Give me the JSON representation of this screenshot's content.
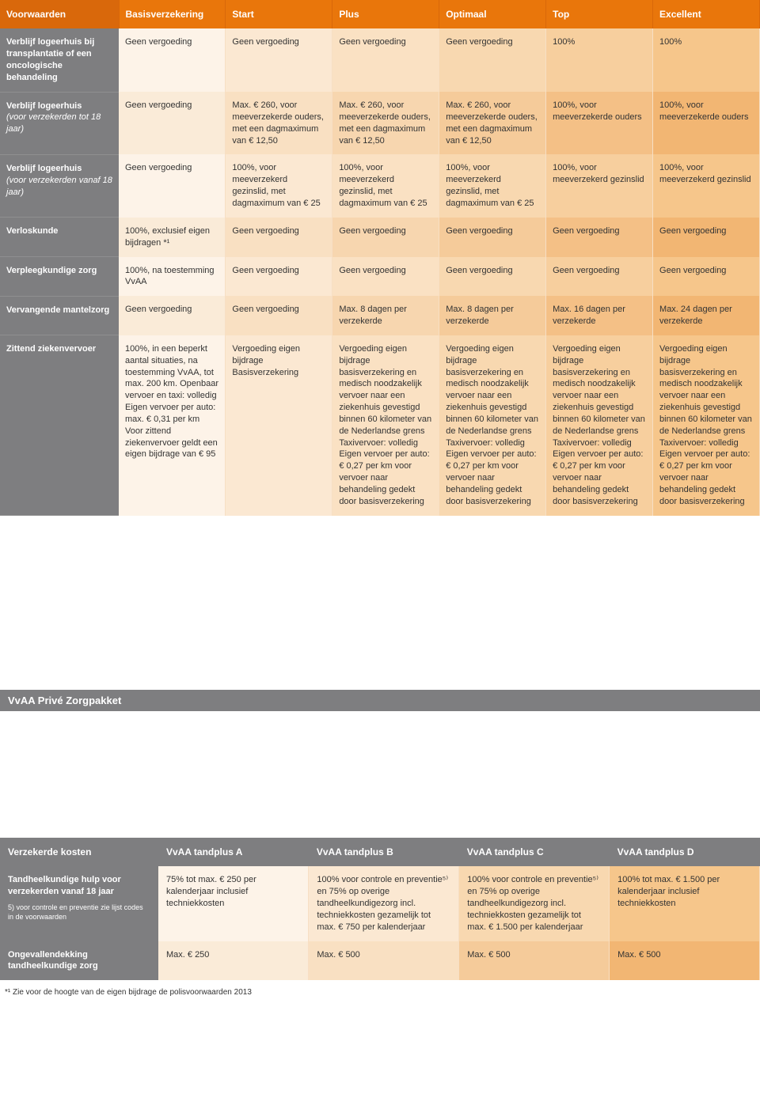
{
  "main": {
    "headers": [
      "Voorwaarden",
      "Basisverzekering",
      "Start",
      "Plus",
      "Optimaal",
      "Top",
      "Excellent"
    ],
    "rows": [
      {
        "label": "Verblijf logeerhuis bij transplantatie of een oncologische behandeling",
        "sublabel": "",
        "cells": [
          "Geen vergoeding",
          "Geen vergoeding",
          "Geen vergoeding",
          "Geen vergoeding",
          "100%",
          "100%"
        ]
      },
      {
        "label": "Verblijf logeerhuis",
        "sublabel": "(voor verzekerden tot 18 jaar)",
        "cells": [
          "Geen vergoeding",
          "Max. € 260, voor meeverzekerde ouders, met een dagmaximum van € 12,50",
          "Max. € 260, voor meeverzekerde ouders, met een dagmaximum van € 12,50",
          "Max. € 260, voor meeverzekerde ouders, met een dagmaximum van € 12,50",
          "100%, voor meeverzekerde ouders",
          "100%, voor meeverzekerde ouders"
        ]
      },
      {
        "label": "Verblijf logeerhuis",
        "sublabel": "(voor verzekerden vanaf 18 jaar)",
        "cells": [
          "Geen vergoeding",
          "100%, voor meeverzekerd gezinslid, met dagmaximum van € 25",
          "100%, voor meeverzekerd gezinslid, met dagmaximum van € 25",
          "100%, voor meeverzekerd gezinslid, met dagmaximum van € 25",
          "100%, voor meeverzekerd gezinslid",
          "100%, voor meeverzekerd gezinslid"
        ]
      },
      {
        "label": "Verloskunde",
        "sublabel": "",
        "cells": [
          "100%, exclusief eigen bijdragen *¹",
          "Geen vergoeding",
          "Geen vergoeding",
          "Geen vergoeding",
          "Geen vergoeding",
          "Geen vergoeding"
        ]
      },
      {
        "label": "Verpleegkundige zorg",
        "sublabel": "",
        "cells": [
          "100%, na toestemming VvAA",
          "Geen vergoeding",
          "Geen vergoeding",
          "Geen vergoeding",
          "Geen vergoeding",
          "Geen vergoeding"
        ]
      },
      {
        "label": "Vervangende mantelzorg",
        "sublabel": "",
        "cells": [
          "Geen vergoeding",
          "Geen vergoeding",
          "Max. 8 dagen per verzekerde",
          "Max. 8 dagen per verzekerde",
          "Max. 16 dagen per verzekerde",
          "Max. 24 dagen per verzekerde"
        ]
      },
      {
        "label": "Zittend ziekenvervoer",
        "sublabel": "",
        "cells": [
          "100%, in een beperkt aantal situaties, na toestemming VvAA, tot max. 200 km. Openbaar vervoer en taxi: volledig Eigen vervoer per auto: max. € 0,31 per km Voor zittend ziekenvervoer geldt een eigen bijdrage van € 95",
          "Vergoeding eigen bijdrage Basisverzekering",
          "Vergoeding eigen bijdrage basisverzekering en medisch noodzakelijk vervoer naar een ziekenhuis gevestigd binnen 60 kilometer van de Nederlandse grens Taxivervoer: volledig Eigen vervoer per auto: € 0,27 per km voor vervoer naar behandeling gedekt door basisverzekering",
          "Vergoeding eigen bijdrage basisverzekering en medisch noodzakelijk vervoer naar een ziekenhuis gevestigd binnen 60 kilometer van de Nederlandse grens Taxivervoer: volledig Eigen vervoer per auto: € 0,27 per km voor vervoer naar behandeling gedekt door basisverzekering",
          "Vergoeding eigen bijdrage basisverzekering en medisch noodzakelijk vervoer naar een ziekenhuis gevestigd binnen 60 kilometer van de Nederlandse grens Taxivervoer: volledig Eigen vervoer per auto: € 0,27 per km voor vervoer naar behandeling gedekt door basisverzekering",
          "Vergoeding eigen bijdrage basisverzekering en medisch noodzakelijk vervoer naar een ziekenhuis gevestigd binnen 60 kilometer van de Nederlandse grens Taxivervoer: volledig Eigen vervoer per auto: € 0,27 per km voor vervoer naar behandeling gedekt door basisverzekering"
        ]
      }
    ]
  },
  "section_title": "VvAA Privé Zorgpakket",
  "tand": {
    "headers": [
      "Verzekerde kosten",
      "VvAA tandplus A",
      "VvAA tandplus B",
      "VvAA tandplus C",
      "VvAA tandplus D"
    ],
    "rows": [
      {
        "label": "Tandheelkundige hulp voor verzekerden vanaf 18 jaar",
        "subnote": "5) voor controle en preventie zie lijst codes in de voorwaarden",
        "cells": [
          "75% tot max. € 250 per kalenderjaar inclusief techniekkosten",
          "100% voor controle en preventie⁵⁾ en 75% op overige tandheelkundigezorg incl. techniekkosten gezamelijk tot max. € 750 per kalenderjaar",
          "100% voor controle en preventie⁵⁾ en 75% op overige tandheelkundigezorg incl. techniekkosten gezamelijk tot max. € 1.500 per kalenderjaar",
          "100% tot max. € 1.500 per kalenderjaar inclusief techniekkosten"
        ]
      },
      {
        "label": "Ongevallendekking tandheelkundige zorg",
        "subnote": "",
        "cells": [
          "Max. € 250",
          "Max. € 500",
          "Max. € 500",
          "Max. € 500"
        ]
      }
    ]
  },
  "footnote": "*¹ Zie voor de hoogte van de eigen bijdrage de polisvoorwaarden 2013"
}
